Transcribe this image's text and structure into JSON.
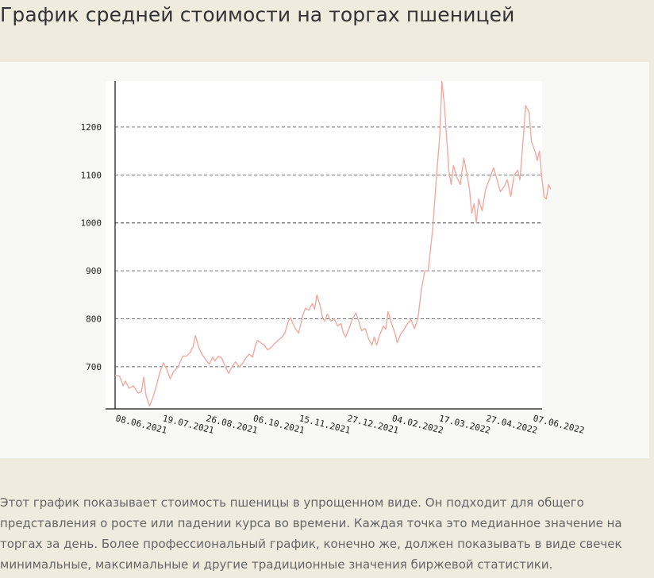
{
  "page": {
    "title": "График средней стоимости на торгах пшеницей",
    "description": "Этот график показывает стоимость пшеницы в упрощенном виде. Он подходит для общего представления о росте или падении курса во времени. Каждая точка  это медианное значение на торгах за день. Более профессиональный график, конечно же, должен показывать в виде свечек минимальные, максимальные и другие традиционные значения биржевой статистики."
  },
  "colors": {
    "page_background": "#efebdf",
    "panel_background": "#f8f8f6",
    "plot_background": "#ffffff",
    "series_line": "#f4a9a0",
    "grid_line": "#666666"
  },
  "chart_data": {
    "type": "line",
    "title": "",
    "xlabel": "",
    "ylabel": "",
    "grid": "horizontal dashed",
    "ylim": [
      612,
      1296
    ],
    "xlim": [
      "2021-06-08",
      "2022-06-07"
    ],
    "yticks": [
      700,
      800,
      900,
      1000,
      1100,
      1200
    ],
    "xticks": [
      "08.06.2021",
      "19.07.2021",
      "26.08.2021",
      "06.10.2021",
      "15.11.2021",
      "27.12.2021",
      "04.02.2022",
      "17.03.2022",
      "27.04.2022",
      "07.06.2022"
    ],
    "series": [
      {
        "color": "#f4a9a0",
        "points": [
          [
            "2021-06-08",
            682
          ],
          [
            "2021-06-12",
            680
          ],
          [
            "2021-06-15",
            660
          ],
          [
            "2021-06-17",
            670
          ],
          [
            "2021-06-20",
            655
          ],
          [
            "2021-06-24",
            660
          ],
          [
            "2021-06-28",
            645
          ],
          [
            "2021-07-01",
            648
          ],
          [
            "2021-07-03",
            678
          ],
          [
            "2021-07-05",
            640
          ],
          [
            "2021-07-08",
            618
          ],
          [
            "2021-07-11",
            636
          ],
          [
            "2021-07-14",
            660
          ],
          [
            "2021-07-17",
            688
          ],
          [
            "2021-07-20",
            708
          ],
          [
            "2021-07-23",
            695
          ],
          [
            "2021-07-26",
            675
          ],
          [
            "2021-07-29",
            690
          ],
          [
            "2021-08-02",
            700
          ],
          [
            "2021-08-06",
            722
          ],
          [
            "2021-08-09",
            722
          ],
          [
            "2021-08-12",
            728
          ],
          [
            "2021-08-15",
            742
          ],
          [
            "2021-08-17",
            765
          ],
          [
            "2021-08-20",
            740
          ],
          [
            "2021-08-23",
            725
          ],
          [
            "2021-08-26",
            715
          ],
          [
            "2021-08-29",
            705
          ],
          [
            "2021-09-01",
            720
          ],
          [
            "2021-09-03",
            712
          ],
          [
            "2021-09-06",
            722
          ],
          [
            "2021-09-09",
            718
          ],
          [
            "2021-09-12",
            700
          ],
          [
            "2021-09-15",
            686
          ],
          [
            "2021-09-18",
            700
          ],
          [
            "2021-09-21",
            710
          ],
          [
            "2021-09-24",
            700
          ],
          [
            "2021-09-27",
            706
          ],
          [
            "2021-09-30",
            718
          ],
          [
            "2021-10-03",
            726
          ],
          [
            "2021-10-06",
            720
          ],
          [
            "2021-10-08",
            742
          ],
          [
            "2021-10-10",
            755
          ],
          [
            "2021-10-13",
            750
          ],
          [
            "2021-10-16",
            745
          ],
          [
            "2021-10-19",
            735
          ],
          [
            "2021-10-22",
            740
          ],
          [
            "2021-10-25",
            748
          ],
          [
            "2021-10-28",
            755
          ],
          [
            "2021-10-31",
            760
          ],
          [
            "2021-11-03",
            770
          ],
          [
            "2021-11-06",
            795
          ],
          [
            "2021-11-08",
            802
          ],
          [
            "2021-11-10",
            790
          ],
          [
            "2021-11-12",
            780
          ],
          [
            "2021-11-15",
            770
          ],
          [
            "2021-11-17",
            790
          ],
          [
            "2021-11-19",
            810
          ],
          [
            "2021-11-21",
            822
          ],
          [
            "2021-11-24",
            818
          ],
          [
            "2021-11-27",
            832
          ],
          [
            "2021-11-29",
            820
          ],
          [
            "2021-12-01",
            850
          ],
          [
            "2021-12-04",
            825
          ],
          [
            "2021-12-06",
            800
          ],
          [
            "2021-12-08",
            795
          ],
          [
            "2021-12-10",
            810
          ],
          [
            "2021-12-13",
            795
          ],
          [
            "2021-12-16",
            800
          ],
          [
            "2021-12-19",
            785
          ],
          [
            "2021-12-22",
            790
          ],
          [
            "2021-12-24",
            770
          ],
          [
            "2021-12-26",
            762
          ],
          [
            "2021-12-29",
            780
          ],
          [
            "2022-01-01",
            800
          ],
          [
            "2022-01-04",
            812
          ],
          [
            "2022-01-07",
            790
          ],
          [
            "2022-01-09",
            775
          ],
          [
            "2022-01-12",
            780
          ],
          [
            "2022-01-15",
            758
          ],
          [
            "2022-01-18",
            745
          ],
          [
            "2022-01-20",
            762
          ],
          [
            "2022-01-22",
            745
          ],
          [
            "2022-01-25",
            768
          ],
          [
            "2022-01-28",
            785
          ],
          [
            "2022-01-30",
            778
          ],
          [
            "2022-02-01",
            815
          ],
          [
            "2022-02-04",
            790
          ],
          [
            "2022-02-07",
            770
          ],
          [
            "2022-02-09",
            750
          ],
          [
            "2022-02-12",
            768
          ],
          [
            "2022-02-15",
            778
          ],
          [
            "2022-02-18",
            790
          ],
          [
            "2022-02-21",
            798
          ],
          [
            "2022-02-24",
            780
          ],
          [
            "2022-02-27",
            800
          ],
          [
            "2022-03-02",
            860
          ],
          [
            "2022-03-05",
            900
          ],
          [
            "2022-03-08",
            900
          ],
          [
            "2022-03-12",
            990
          ],
          [
            "2022-03-15",
            1090
          ],
          [
            "2022-03-18",
            1180
          ],
          [
            "2022-03-20",
            1295
          ],
          [
            "2022-03-22",
            1250
          ],
          [
            "2022-03-24",
            1180
          ],
          [
            "2022-03-26",
            1110
          ],
          [
            "2022-03-28",
            1080
          ],
          [
            "2022-03-30",
            1120
          ],
          [
            "2022-04-02",
            1095
          ],
          [
            "2022-04-05",
            1080
          ],
          [
            "2022-04-08",
            1135
          ],
          [
            "2022-04-11",
            1100
          ],
          [
            "2022-04-13",
            1070
          ],
          [
            "2022-04-15",
            1020
          ],
          [
            "2022-04-17",
            1040
          ],
          [
            "2022-04-19",
            1000
          ],
          [
            "2022-04-21",
            1050
          ],
          [
            "2022-04-24",
            1025
          ],
          [
            "2022-04-27",
            1070
          ],
          [
            "2022-05-01",
            1095
          ],
          [
            "2022-05-04",
            1115
          ],
          [
            "2022-05-07",
            1090
          ],
          [
            "2022-05-10",
            1065
          ],
          [
            "2022-05-13",
            1075
          ],
          [
            "2022-05-16",
            1090
          ],
          [
            "2022-05-19",
            1055
          ],
          [
            "2022-05-22",
            1100
          ],
          [
            "2022-05-25",
            1110
          ],
          [
            "2022-05-27",
            1090
          ],
          [
            "2022-05-30",
            1180
          ],
          [
            "2022-06-01",
            1245
          ],
          [
            "2022-06-04",
            1230
          ],
          [
            "2022-06-06",
            1170
          ],
          [
            "2022-06-09",
            1150
          ],
          [
            "2022-06-11",
            1130
          ],
          [
            "2022-06-13",
            1150
          ],
          [
            "2022-06-15",
            1095
          ],
          [
            "2022-06-17",
            1055
          ],
          [
            "2022-06-19",
            1050
          ],
          [
            "2022-06-21",
            1080
          ],
          [
            "2022-06-23",
            1070
          ]
        ]
      }
    ]
  }
}
